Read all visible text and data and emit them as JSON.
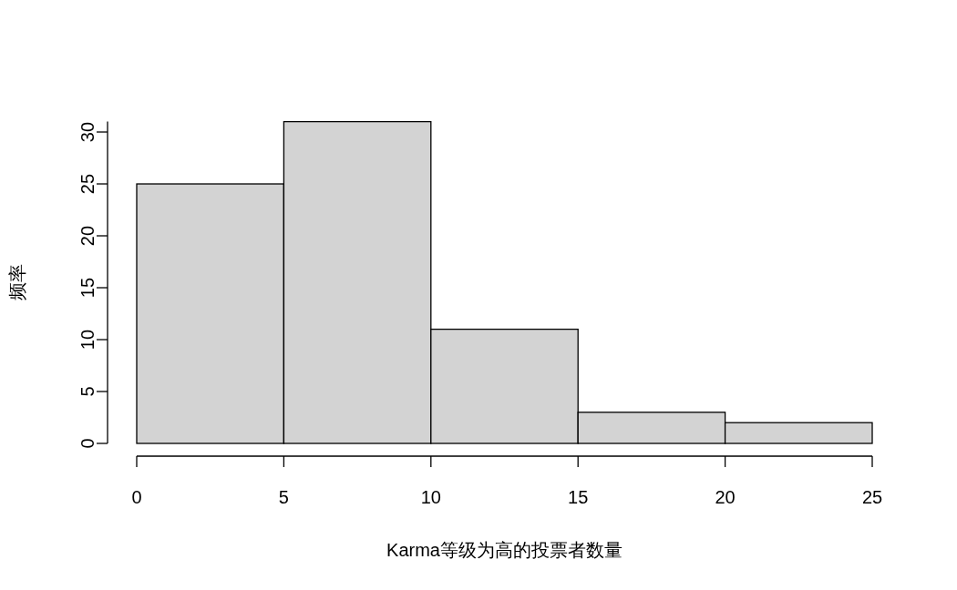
{
  "chart_data": {
    "type": "histogram",
    "xlabel": "Karma等级为高的投票者数量",
    "ylabel": "频率",
    "bins": [
      0,
      5,
      10,
      15,
      20,
      25
    ],
    "values": [
      25,
      31,
      11,
      3,
      2
    ],
    "color": "#d3d3d3",
    "xlim": [
      0,
      25
    ],
    "ylim": [
      0,
      31
    ],
    "xticks": [
      0,
      5,
      10,
      15,
      20,
      25
    ],
    "yticks": [
      0,
      5,
      10,
      15,
      20,
      25,
      30
    ],
    "grid": false
  }
}
